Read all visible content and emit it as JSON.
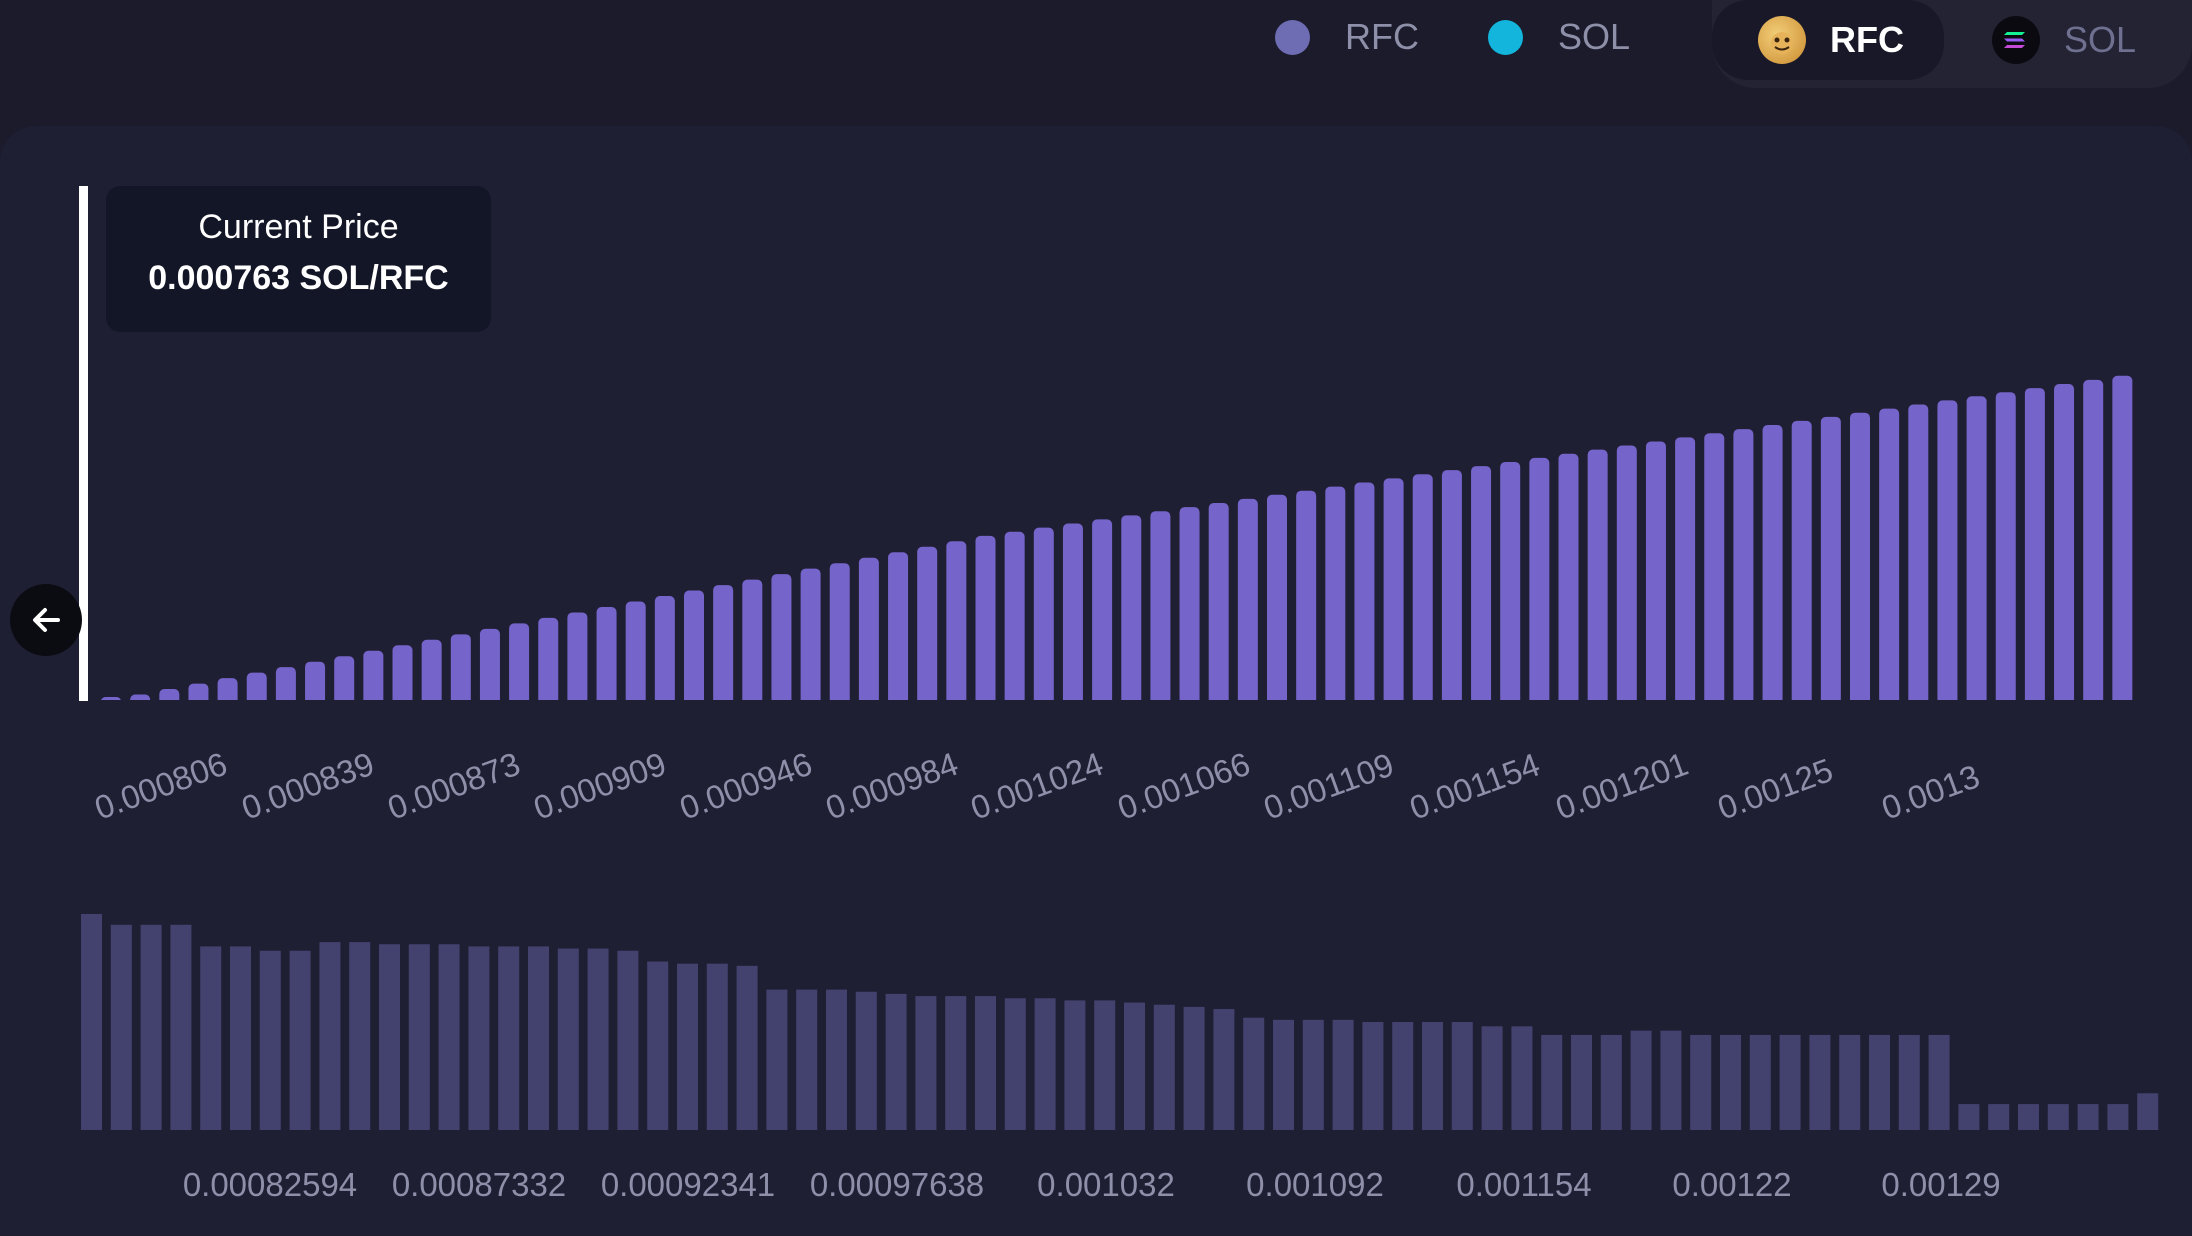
{
  "legend": [
    {
      "label": "RFC",
      "color": "#6e6db4"
    },
    {
      "label": "SOL",
      "color": "#13b5dc"
    }
  ],
  "token_toggle": [
    {
      "label": "RFC",
      "icon": "rfc-token-icon",
      "active": true
    },
    {
      "label": "SOL",
      "icon": "solana-token-icon",
      "active": false
    }
  ],
  "tooltip": {
    "title": "Current Price",
    "value": "0.000763 SOL/RFC"
  },
  "colors": {
    "main_bars": "#7564c9",
    "overview_bars": "#43416e",
    "price_line": "#ffffff"
  },
  "chart_data": [
    {
      "type": "bar",
      "name": "liquidity-distribution",
      "x_tick_labels": [
        "0.000806",
        "0.000839",
        "0.000873",
        "0.000909",
        "0.000946",
        "0.000984",
        "0.001024",
        "0.001066",
        "0.001109",
        "0.001154",
        "0.001201",
        "0.00125",
        "0.0013"
      ],
      "current_price": "0.000763 SOL/RFC",
      "values": [
        1,
        2,
        4,
        6,
        8,
        10,
        12,
        14,
        16,
        18,
        20,
        22,
        24,
        26,
        28,
        30,
        32,
        34,
        36,
        38,
        40,
        42,
        44,
        46,
        48,
        50,
        52,
        54,
        56,
        58,
        60,
        61.5,
        63,
        64.5,
        66,
        67.5,
        69,
        70.5,
        72,
        73.5,
        75,
        76.5,
        78,
        79.5,
        81,
        82.5,
        84,
        85.5,
        87,
        88.5,
        90,
        91.5,
        93,
        94.5,
        96,
        97.5,
        99,
        100.5,
        102,
        103.5,
        105,
        106.5,
        108,
        109.5,
        111,
        112.5,
        114,
        115.5,
        117,
        118.5
      ],
      "ylim": [
        0,
        125
      ],
      "grid": false,
      "color": "#7564c9"
    },
    {
      "type": "bar",
      "name": "overview-distribution",
      "x_tick_labels": [
        "0.00082594",
        "0.00087332",
        "0.00092341",
        "0.00097638",
        "0.001032",
        "0.001092",
        "0.001154",
        "0.00122",
        "0.00129"
      ],
      "values": [
        100,
        95,
        95,
        95,
        85,
        85,
        83,
        83,
        87,
        87,
        86,
        86,
        86,
        85,
        85,
        85,
        84,
        84,
        83,
        78,
        77,
        77,
        76,
        65,
        65,
        65,
        64,
        63,
        62,
        62,
        62,
        61,
        61,
        60,
        60,
        59,
        58,
        57,
        56,
        52,
        51,
        51,
        51,
        50,
        50,
        50,
        50,
        48,
        48,
        44,
        44,
        44,
        46,
        46,
        44,
        44,
        44,
        44,
        44,
        44,
        44,
        44,
        44,
        12,
        12,
        12,
        12,
        12,
        12,
        17
      ],
      "ylim": [
        0,
        100
      ],
      "grid": false,
      "color": "#43416e"
    }
  ]
}
